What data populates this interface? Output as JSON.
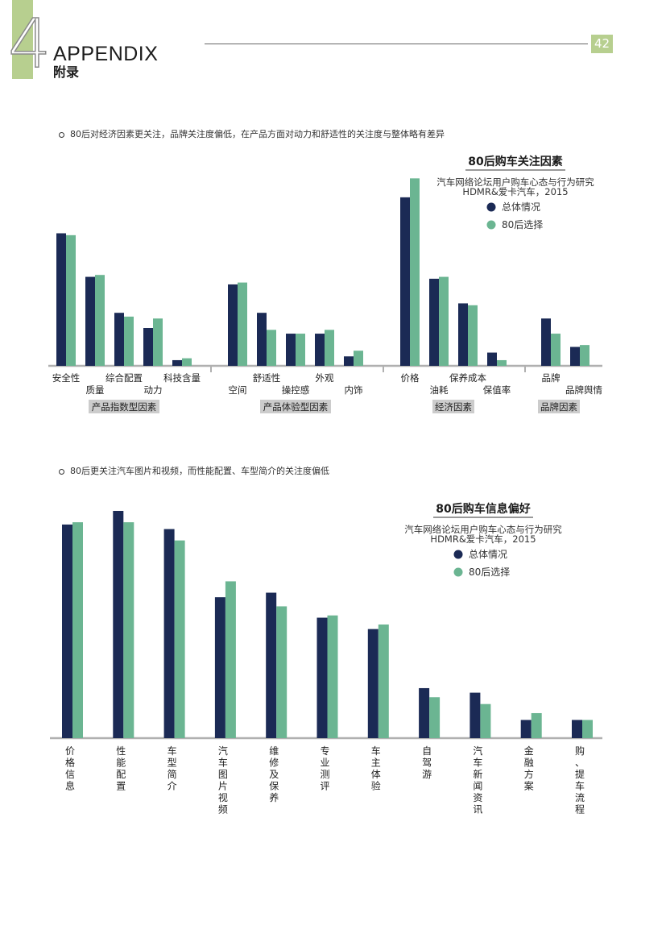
{
  "header": {
    "chapter_number": "4",
    "title": "APPENDIX",
    "title_cn": "附录",
    "page_number": "42"
  },
  "colors": {
    "accent_green": "#b7cf8f",
    "series_overall": "#1b2a55",
    "series_80s": "#6bb592"
  },
  "section1": {
    "bullet_text": "80后对经济因素更关注，品牌关注度偏低，在产品方面对动力和舒适性的关注度与整体略有差异"
  },
  "section2": {
    "bullet_text": "80后更关注汽车图片和视频，而性能配置、车型简介的关注度偏低"
  },
  "chart_data": [
    {
      "type": "bar",
      "title": "80后购车关注因素",
      "source_line1": "汽车网络论坛用户购车心态与行为研究",
      "source_line2": "HDMR&爱卡汽车，2015",
      "legend_position": "top-right",
      "ylim": [
        0,
        100
      ],
      "categories": [
        "安全性",
        "质量",
        "综合配置",
        "动力",
        "科技含量",
        "空间",
        "舒适性",
        "操控感",
        "外观",
        "内饰",
        "价格",
        "油耗",
        "保养成本",
        "保值率",
        "品牌",
        "品牌舆情"
      ],
      "category_groups": [
        {
          "name": "产品指数型因素",
          "count": 5
        },
        {
          "name": "产品体验型因素",
          "count": 5
        },
        {
          "name": "经济因素",
          "count": 4
        },
        {
          "name": "品牌因素",
          "count": 2
        }
      ],
      "series": [
        {
          "name": "总体情况",
          "values": [
            70,
            47,
            28,
            20,
            3,
            43,
            28,
            17,
            17,
            5,
            89,
            46,
            33,
            7,
            25,
            10
          ]
        },
        {
          "name": "80后选择",
          "values": [
            69,
            48,
            26,
            25,
            4,
            44,
            19,
            17,
            19,
            8,
            99,
            47,
            32,
            3,
            17,
            11
          ]
        }
      ]
    },
    {
      "type": "bar",
      "title": "80后购车信息偏好",
      "source_line1": "汽车网络论坛用户购车心态与行为研究",
      "source_line2": "HDMR&爱卡汽车，2015",
      "legend_position": "top-right",
      "ylim": [
        0,
        100
      ],
      "categories": [
        "价格信息",
        "性能配置",
        "车型简介",
        "汽车图片视频",
        "维修及保养",
        "专业测评",
        "车主体验",
        "自驾游",
        "汽车新闻资讯",
        "金融方案",
        "购、提车流程"
      ],
      "series": [
        {
          "name": "总体情况",
          "values": [
            94,
            100,
            92,
            62,
            64,
            53,
            48,
            22,
            20,
            8,
            8
          ]
        },
        {
          "name": "80后选择",
          "values": [
            95,
            95,
            87,
            69,
            58,
            54,
            50,
            18,
            15,
            11,
            8
          ]
        }
      ]
    }
  ]
}
